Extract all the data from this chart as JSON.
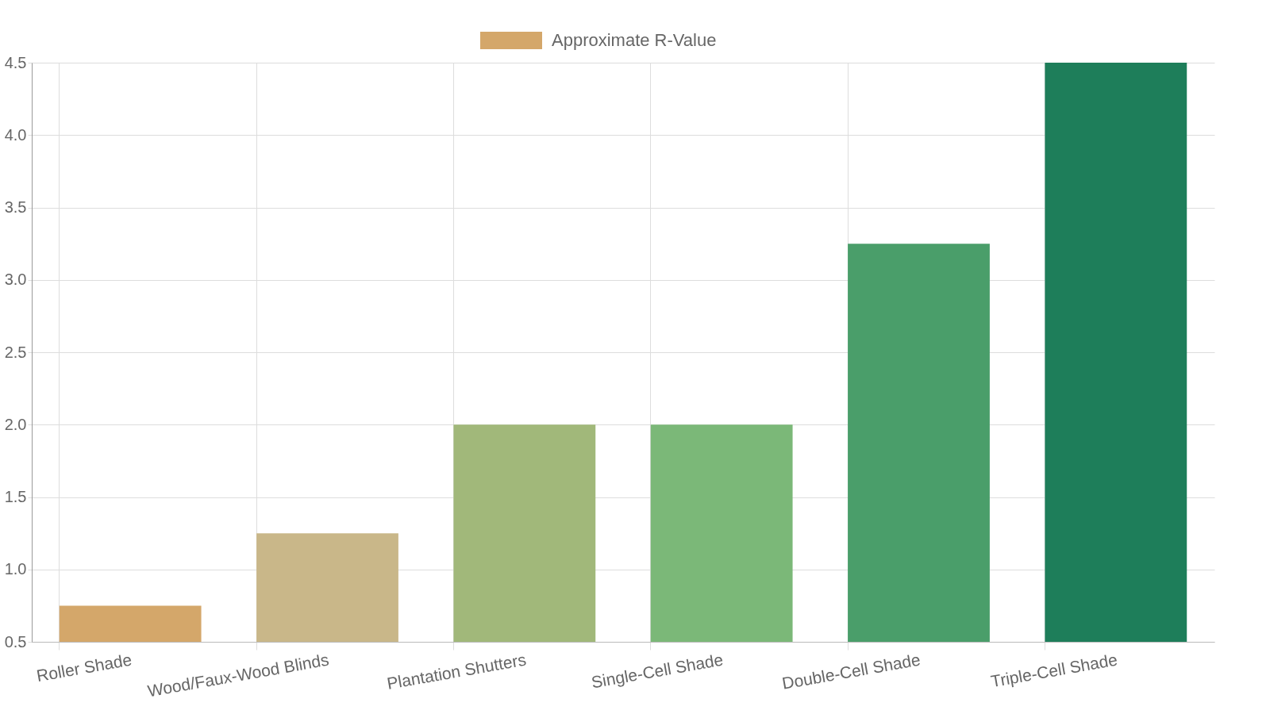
{
  "chart_data": {
    "type": "bar",
    "categories": [
      "Roller Shade",
      "Wood/Faux-Wood Blinds",
      "Plantation Shutters",
      "Single-Cell Shade",
      "Double-Cell Shade",
      "Triple-Cell Shade"
    ],
    "series": [
      {
        "name": "Approximate R-Value",
        "colors": [
          "#d4a76a",
          "#c9b789",
          "#a1b87a",
          "#7bb878",
          "#4a9e6a",
          "#1e7e5a"
        ],
        "values": [
          0.75,
          1.25,
          2.0,
          2.0,
          3.25,
          4.5
        ]
      }
    ],
    "ylim": [
      0.5,
      4.5
    ],
    "yticks": [
      0.5,
      {
        "value": 1,
        "label": "1.0"
      },
      1.5,
      {
        "value": 2,
        "label": "2.0"
      },
      2.5,
      {
        "value": 3,
        "label": "3.0"
      },
      3.5,
      {
        "value": 4,
        "label": "4.0"
      },
      4.5
    ],
    "grid": true,
    "legend": "top"
  }
}
